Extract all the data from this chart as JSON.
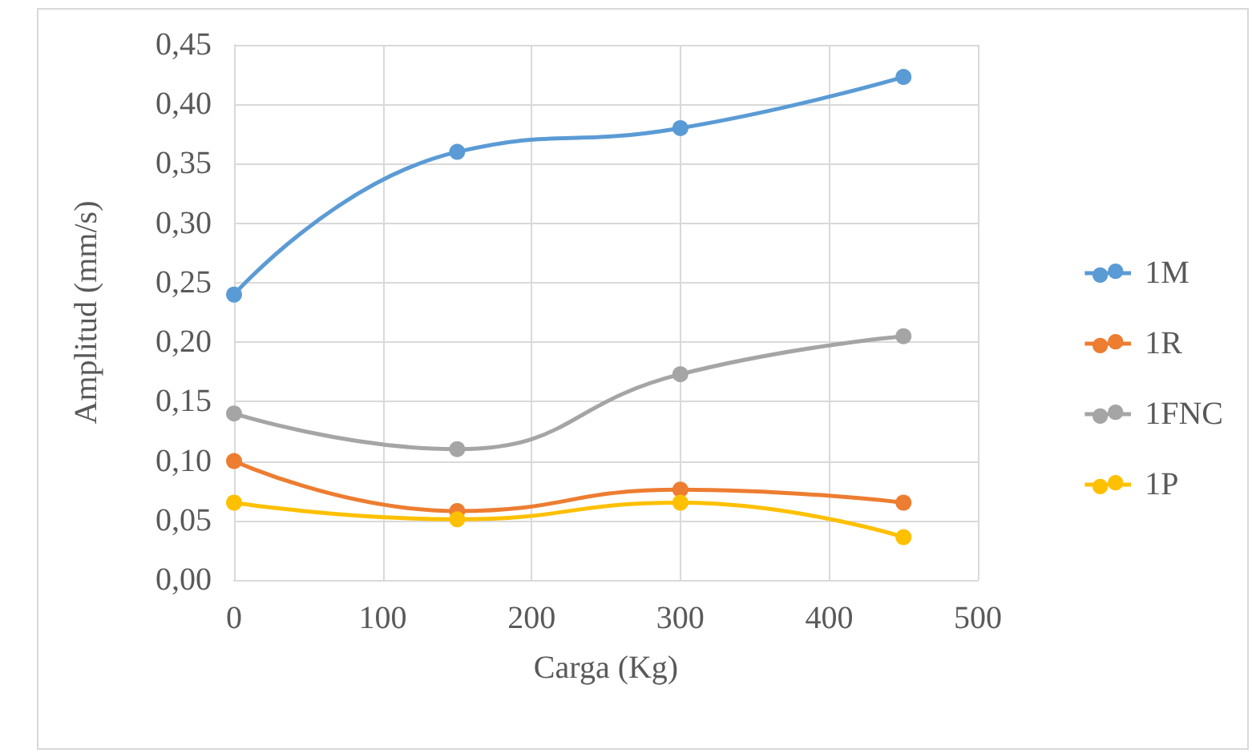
{
  "chart_data": {
    "type": "line",
    "xlabel": "Carga (Kg)",
    "ylabel": "Amplitud (mm/s)",
    "x": [
      0,
      150,
      300,
      450
    ],
    "series": [
      {
        "name": "1M",
        "color": "#5b9bd5",
        "values": [
          0.24,
          0.36,
          0.38,
          0.423
        ]
      },
      {
        "name": "1R",
        "color": "#ed7d31",
        "values": [
          0.1,
          0.058,
          0.076,
          0.065
        ]
      },
      {
        "name": "1FNC",
        "color": "#a5a5a5",
        "values": [
          0.14,
          0.11,
          0.173,
          0.205
        ]
      },
      {
        "name": "1P",
        "color": "#ffc000",
        "values": [
          0.065,
          0.051,
          0.065,
          0.036
        ]
      }
    ],
    "xlim": [
      0,
      500
    ],
    "xticks": [
      0,
      100,
      200,
      300,
      400,
      500
    ],
    "ylim": [
      0,
      0.45
    ],
    "yticks": [
      {
        "value": 0,
        "label": "0,00"
      },
      {
        "value": 0.05,
        "label": "0,05"
      },
      {
        "value": 0.1,
        "label": "0,10"
      },
      {
        "value": 0.15,
        "label": "0,15"
      },
      {
        "value": 0.2,
        "label": "0,20"
      },
      {
        "value": 0.25,
        "label": "0,25"
      },
      {
        "value": 0.3,
        "label": "0,30"
      },
      {
        "value": 0.35,
        "label": "0,35"
      },
      {
        "value": 0.4,
        "label": "0,40"
      },
      {
        "value": 0.45,
        "label": "0,45"
      }
    ],
    "grid": true,
    "legend": "right",
    "marker": "circle",
    "line_style": "solid"
  }
}
